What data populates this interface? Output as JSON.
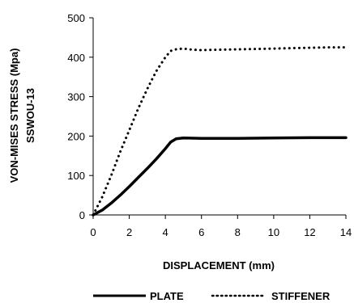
{
  "chart_data": {
    "type": "line",
    "xlabel": "DISPLACEMENT (mm)",
    "ylabel_lines": [
      "VON-MISES STRESS (Mpa)",
      "SSWOU-13"
    ],
    "xlim": [
      0,
      14
    ],
    "ylim": [
      0,
      500
    ],
    "x_ticks": [
      "0",
      "2",
      "4",
      "6",
      "8",
      "10",
      "12",
      "14"
    ],
    "y_ticks": [
      "0",
      "100",
      "200",
      "300",
      "400",
      "500"
    ],
    "legend_position": "bottom",
    "series": [
      {
        "name": "PLATE",
        "style": "solid",
        "color": "#000000",
        "points": [
          [
            0,
            0
          ],
          [
            0.5,
            12
          ],
          [
            1,
            30
          ],
          [
            1.5,
            50
          ],
          [
            2,
            72
          ],
          [
            2.5,
            95
          ],
          [
            3,
            118
          ],
          [
            3.5,
            142
          ],
          [
            4,
            168
          ],
          [
            4.3,
            185
          ],
          [
            4.6,
            193
          ],
          [
            5,
            195
          ],
          [
            6,
            194
          ],
          [
            8,
            194
          ],
          [
            10,
            195
          ],
          [
            12,
            196
          ],
          [
            14,
            196
          ]
        ]
      },
      {
        "name": "STIFFENER",
        "style": "dotted",
        "color": "#000000",
        "points": [
          [
            0,
            0
          ],
          [
            0.5,
            45
          ],
          [
            1,
            100
          ],
          [
            1.5,
            160
          ],
          [
            2,
            215
          ],
          [
            2.5,
            270
          ],
          [
            3,
            320
          ],
          [
            3.5,
            365
          ],
          [
            4,
            400
          ],
          [
            4.3,
            416
          ],
          [
            4.6,
            420
          ],
          [
            5,
            422
          ],
          [
            5.5,
            419
          ],
          [
            6,
            418
          ],
          [
            7,
            419
          ],
          [
            8,
            420
          ],
          [
            9,
            421
          ],
          [
            10,
            422
          ],
          [
            11,
            423
          ],
          [
            12,
            424
          ],
          [
            13,
            425
          ],
          [
            14,
            425
          ]
        ]
      }
    ]
  }
}
